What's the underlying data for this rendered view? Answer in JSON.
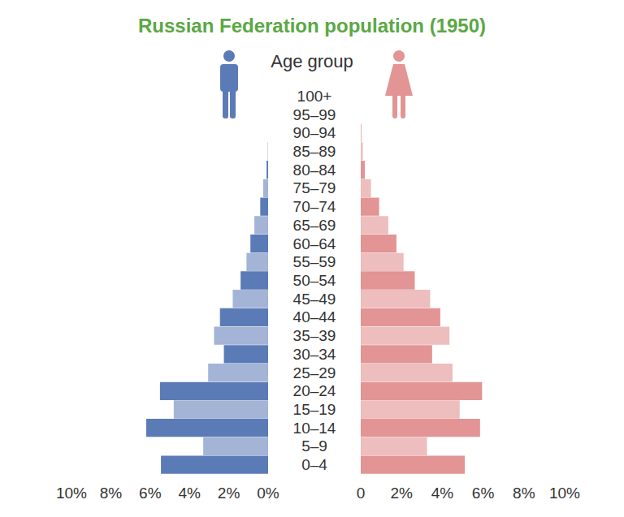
{
  "chart_data": [
    {
      "type": "bar",
      "title": "Russian Federation population (1950)",
      "ylabel": "Age group",
      "orientation": "horizontal",
      "grid": false,
      "categories": [
        "0–4",
        "5–9",
        "10–14",
        "15–19",
        "20–24",
        "25–29",
        "30–34",
        "35–39",
        "40–44",
        "45–49",
        "50–54",
        "55–59",
        "60–64",
        "65–69",
        "70–74",
        "75–79",
        "80–84",
        "85–89",
        "90–94",
        "95–99",
        "100+"
      ],
      "values": [
        5.45,
        3.3,
        6.2,
        4.8,
        5.5,
        3.05,
        2.25,
        2.75,
        2.45,
        1.8,
        1.4,
        1.1,
        0.9,
        0.7,
        0.4,
        0.25,
        0.08,
        0.02,
        0,
        0,
        0
      ],
      "colors": [
        "#5b7bb7",
        "#a3b4d6",
        "#5b7bb7",
        "#a3b4d6",
        "#5b7bb7",
        "#a3b4d6",
        "#5b7bb7",
        "#a3b4d6",
        "#5b7bb7",
        "#a3b4d6",
        "#5b7bb7",
        "#a3b4d6",
        "#5b7bb7",
        "#a3b4d6",
        "#5b7bb7",
        "#a3b4d6",
        "#5b7bb7",
        "#a3b4d6",
        "#5b7bb7",
        "#a3b4d6",
        "#5b7bb7"
      ],
      "xlim": [
        0,
        10
      ],
      "xticks": [
        {
          "value": 0,
          "label": "0%"
        },
        {
          "value": 2,
          "label": "2%"
        },
        {
          "value": 4,
          "label": "4%"
        },
        {
          "value": 6,
          "label": "6%"
        },
        {
          "value": 8,
          "label": "8%"
        },
        {
          "value": 10,
          "label": "10%"
        }
      ]
    },
    {
      "type": "bar",
      "orientation": "horizontal",
      "grid": false,
      "categories": [
        "0–4",
        "5–9",
        "10–14",
        "15–19",
        "20–24",
        "25–29",
        "30–34",
        "35–39",
        "40–44",
        "45–49",
        "50–54",
        "55–59",
        "60–64",
        "65–69",
        "70–74",
        "75–79",
        "80–84",
        "85–89",
        "90–94",
        "95–99",
        "100+"
      ],
      "values": [
        5.1,
        3.25,
        5.85,
        4.85,
        5.95,
        4.5,
        3.5,
        4.35,
        3.9,
        3.4,
        2.65,
        2.1,
        1.75,
        1.35,
        0.9,
        0.5,
        0.2,
        0.1,
        0.03,
        0,
        0
      ],
      "colors": [
        "#e39494",
        "#eebdbd",
        "#e39494",
        "#eebdbd",
        "#e39494",
        "#eebdbd",
        "#e39494",
        "#eebdbd",
        "#e39494",
        "#eebdbd",
        "#e39494",
        "#eebdbd",
        "#e39494",
        "#eebdbd",
        "#e39494",
        "#eebdbd",
        "#e39494",
        "#eebdbd",
        "#e39494",
        "#eebdbd",
        "#e39494"
      ],
      "xlim": [
        0,
        10
      ],
      "xticks": [
        0,
        {
          "value": 2,
          "label": "2%"
        },
        {
          "value": 4,
          "label": "4%"
        },
        {
          "value": 6,
          "label": "6%"
        },
        {
          "value": 8,
          "label": "8%"
        },
        {
          "value": 10,
          "label": "10%"
        }
      ]
    }
  ]
}
